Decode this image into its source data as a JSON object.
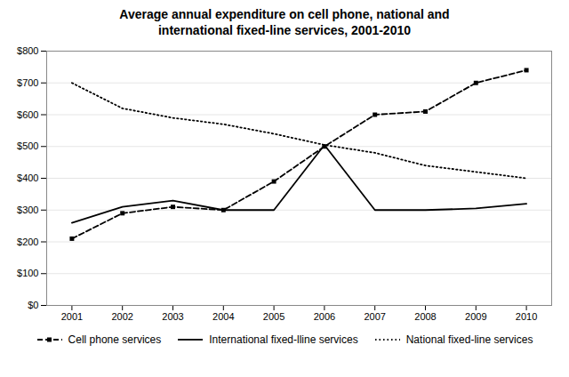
{
  "chart_data": {
    "type": "line",
    "title": "Average annual expenditure on cell phone, national and\ninternational fixed-line services, 2001-2010",
    "x": [
      2001,
      2002,
      2003,
      2004,
      2005,
      2006,
      2007,
      2008,
      2009,
      2010
    ],
    "series": [
      {
        "name": "Cell phone services",
        "color": "#000000",
        "values": [
          210,
          290,
          310,
          300,
          390,
          500,
          600,
          610,
          700,
          740
        ],
        "line_style": "dashed",
        "marker": "square"
      },
      {
        "name": "International fixed-lline services",
        "color": "#000000",
        "values": [
          260,
          310,
          330,
          300,
          300,
          505,
          300,
          300,
          305,
          320
        ],
        "line_style": "solid"
      },
      {
        "name": "National fixed-line services",
        "color": "#000000",
        "values": [
          700,
          620,
          590,
          570,
          540,
          505,
          480,
          440,
          420,
          400
        ],
        "line_style": "dotted"
      }
    ],
    "xlim": [
      2000.5,
      2010.5
    ],
    "xticks": [
      2001,
      2002,
      2003,
      2004,
      2005,
      2006,
      2007,
      2008,
      2009,
      2010
    ],
    "ylim": [
      0,
      800
    ],
    "yticks": [
      {
        "value": 0,
        "label": "$0"
      },
      {
        "value": 100,
        "label": "$100"
      },
      {
        "value": 200,
        "label": "$200"
      },
      {
        "value": 300,
        "label": "$300"
      },
      {
        "value": 400,
        "label": "$400"
      },
      {
        "value": 500,
        "label": "$500"
      },
      {
        "value": 600,
        "label": "$600"
      },
      {
        "value": 700,
        "label": "$700"
      },
      {
        "value": 800,
        "label": "$800"
      }
    ],
    "grid": true,
    "legend": "bottom"
  }
}
